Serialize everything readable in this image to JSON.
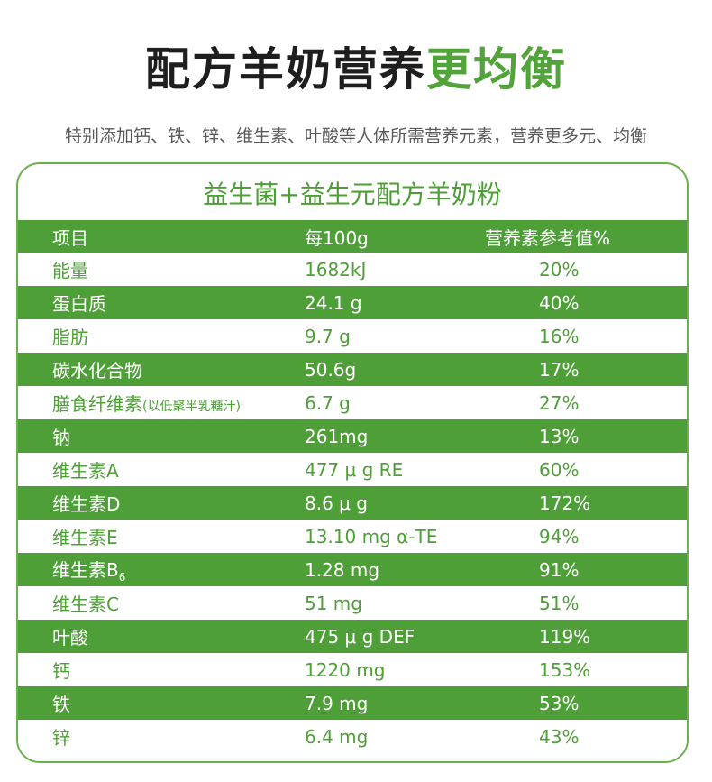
{
  "header": {
    "title_main": "配方羊奶营养",
    "title_accent": "更均衡",
    "subtitle": "特别添加钙、铁、锌、维生素、叶酸等人体所需营养元素，营养更多元、均衡"
  },
  "panel": {
    "title": "益生菌+益生元配方羊奶粉",
    "columns": [
      "项目",
      "每100g",
      "营养素参考值%"
    ],
    "rows": [
      {
        "item": "能量",
        "note": "",
        "amount": "1682kJ",
        "nrv": "20%"
      },
      {
        "item": "蛋白质",
        "note": "",
        "amount": "24.1 g",
        "nrv": "40%"
      },
      {
        "item": "脂肪",
        "note": "",
        "amount": "9.7 g",
        "nrv": "16%"
      },
      {
        "item": "碳水化合物",
        "note": "",
        "amount": "50.6g",
        "nrv": "17%"
      },
      {
        "item": "膳食纤维素",
        "note": "(以低聚半乳糖汁)",
        "amount": "6.7 g",
        "nrv": "27%"
      },
      {
        "item": "钠",
        "note": "",
        "amount": "261mg",
        "nrv": "13%"
      },
      {
        "item": "维生素A",
        "note": "",
        "amount": "477 μ g RE",
        "nrv": "60%"
      },
      {
        "item": "维生素D",
        "note": "",
        "amount": "8.6 μ g",
        "nrv": "172%"
      },
      {
        "item": "维生素E",
        "note": "",
        "amount": "13.10 mg α-TE",
        "nrv": "94%"
      },
      {
        "item": "维生素B",
        "note": "6",
        "amount": "1.28 mg",
        "nrv": "91%"
      },
      {
        "item": "维生素C",
        "note": "",
        "amount": "51 mg",
        "nrv": "51%"
      },
      {
        "item": "叶酸",
        "note": "",
        "amount": "475 μ g DEF",
        "nrv": "119%"
      },
      {
        "item": "钙",
        "note": "",
        "amount": "1220 mg",
        "nrv": "153%"
      },
      {
        "item": "铁",
        "note": "",
        "amount": "7.9 mg",
        "nrv": "53%"
      },
      {
        "item": "锌",
        "note": "",
        "amount": "6.4 mg",
        "nrv": "43%"
      }
    ]
  },
  "colors": {
    "accent": "#4f9f38",
    "title_text": "#1e1e1e",
    "subtitle_text": "#5a5a5a"
  }
}
